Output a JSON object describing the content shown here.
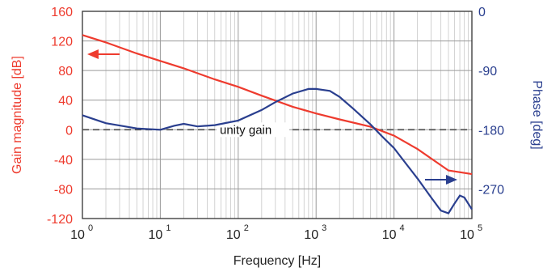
{
  "chart_data": {
    "type": "line",
    "title": "",
    "xlabel": "Frequency [Hz]",
    "ylabel_left": "Gain magnitude [dB]",
    "ylabel_right": "Phase [deg]",
    "x_scale": "log",
    "xlim": [
      1,
      100000
    ],
    "ylim_left": [
      -120,
      160
    ],
    "ylim_right": [
      -315,
      0
    ],
    "grid": true,
    "x_ticks": [
      {
        "value": 1,
        "base": "10",
        "exp": "0"
      },
      {
        "value": 10,
        "base": "10",
        "exp": "1"
      },
      {
        "value": 100,
        "base": "10",
        "exp": "2"
      },
      {
        "value": 1000,
        "base": "10",
        "exp": "3"
      },
      {
        "value": 10000,
        "base": "10",
        "exp": "4"
      },
      {
        "value": 100000,
        "base": "10",
        "exp": "5"
      }
    ],
    "left_ticks": [
      "160",
      "120",
      "80",
      "40",
      "0",
      "-40",
      "-80",
      "-120"
    ],
    "right_ticks": [
      "0",
      "-90",
      "-180",
      "-270"
    ],
    "annotation": "unity gain",
    "colors": {
      "gain": "#ee3b2e",
      "phase": "#2a3f8f",
      "unity": "#555555",
      "grid": "#c8c8c8"
    },
    "series": [
      {
        "axis": "left",
        "color": "#ee3b2e",
        "x": [
          1,
          2,
          5,
          10,
          20,
          50,
          100,
          200,
          500,
          1000,
          2000,
          5000,
          10000,
          20000,
          50000,
          100000
        ],
        "y": [
          128,
          118,
          103,
          93,
          83,
          68,
          58,
          46,
          31,
          22,
          14,
          4,
          -8,
          -26,
          -55,
          -60
        ]
      },
      {
        "axis": "right",
        "color": "#2a3f8f",
        "x": [
          1,
          2,
          5,
          10,
          15,
          20,
          30,
          50,
          100,
          200,
          300,
          500,
          800,
          1000,
          1500,
          2000,
          3000,
          5000,
          7000,
          10000,
          15000,
          20000,
          30000,
          40000,
          50000,
          60000,
          70000,
          80000,
          100000
        ],
        "y": [
          -158,
          -170,
          -178,
          -180,
          -174,
          -171,
          -175,
          -173,
          -166,
          -150,
          -138,
          -125,
          -118,
          -118,
          -121,
          -130,
          -148,
          -172,
          -190,
          -208,
          -235,
          -254,
          -283,
          -303,
          -307,
          -292,
          -280,
          -283,
          -301
        ]
      }
    ]
  }
}
